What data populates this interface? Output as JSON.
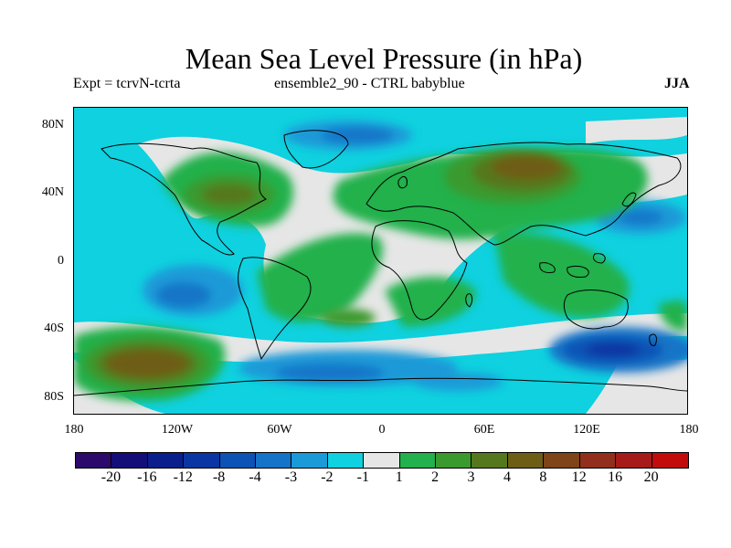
{
  "title": "Mean Sea Level Pressure (in hPa)",
  "experiment": "Expt = tcrvN-tcrta",
  "ensemble": "ensemble2_90 - CTRL babyblue",
  "season": "JJA",
  "lat_labels": [
    "80N",
    "40N",
    "0",
    "40S",
    "80S"
  ],
  "lon_labels": [
    "180",
    "120W",
    "60W",
    "0",
    "60E",
    "120E",
    "180"
  ],
  "colorbar": {
    "colors": [
      "#2b0a6b",
      "#130e78",
      "#0a1e8c",
      "#0a36a3",
      "#0d52b5",
      "#1574c7",
      "#1b9ad8",
      "#0fd1df",
      "#e6e6e6",
      "#22b14c",
      "#3a9a2e",
      "#55781e",
      "#6e5d14",
      "#7f4418",
      "#922f1c",
      "#a61a1a",
      "#c20b0b"
    ],
    "labels": [
      "-20",
      "-16",
      "-12",
      "-8",
      "-4",
      "-3",
      "-2",
      "-1",
      "1",
      "2",
      "3",
      "4",
      "8",
      "12",
      "16",
      "20"
    ]
  }
}
